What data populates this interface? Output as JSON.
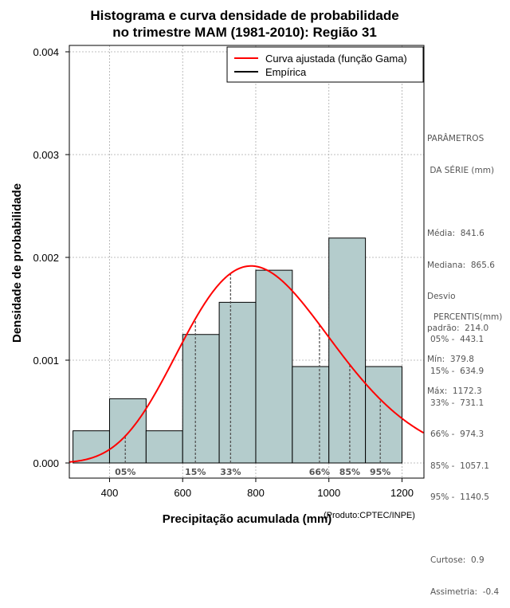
{
  "chart_data": {
    "type": "histogram",
    "title_line1": "Histograma e curva densidade de probabilidade",
    "title_line2": "no trimestre MAM (1981-2010): Região 31",
    "xlabel": "Precipitação acumulada (mm)",
    "ylabel": "Densidade de probabilidade",
    "credit": "(Produto:CPTEC/INPE)",
    "xlim": [
      290,
      1260
    ],
    "ylim": [
      0,
      0.0041
    ],
    "x_ticks": [
      400,
      600,
      800,
      1000,
      1200
    ],
    "x_tick_labels": [
      "400",
      "600",
      "800",
      "1000",
      "1200"
    ],
    "y_ticks": [
      0,
      0.001,
      0.002,
      0.003,
      0.004
    ],
    "y_tick_labels": [
      "0.000",
      "0.001",
      "0.002",
      "0.003",
      "0.004"
    ],
    "bins": [
      {
        "from": 300,
        "to": 400,
        "density": 0.000313
      },
      {
        "from": 400,
        "to": 500,
        "density": 0.000625
      },
      {
        "from": 500,
        "to": 600,
        "density": 0.000313
      },
      {
        "from": 600,
        "to": 700,
        "density": 0.00125
      },
      {
        "from": 700,
        "to": 800,
        "density": 0.001563
      },
      {
        "from": 800,
        "to": 900,
        "density": 0.001875
      },
      {
        "from": 900,
        "to": 1000,
        "density": 0.000938
      },
      {
        "from": 1000,
        "to": 1100,
        "density": 0.002188
      },
      {
        "from": 1100,
        "to": 1200,
        "density": 0.000938
      }
    ],
    "gamma_fit": {
      "mean": 841.6,
      "sd": 214.0
    },
    "percentile_markers": [
      {
        "label": "05%",
        "value": 443.1
      },
      {
        "label": "15%",
        "value": 634.9
      },
      {
        "label": "33%",
        "value": 731.1
      },
      {
        "label": "66%",
        "value": 974.3
      },
      {
        "label": "85%",
        "value": 1057.1
      },
      {
        "label": "95%",
        "value": 1140.5
      }
    ],
    "legend": [
      {
        "label": "Curva ajustada (função Gama)",
        "color": "#ff0000"
      },
      {
        "label": "Empírica",
        "color": "#000000"
      }
    ],
    "colors": {
      "bar_fill": "#b4cccc",
      "curve": "#ff0000",
      "grid": "#aaaaaa",
      "marker": "#555555"
    }
  },
  "side_panel": {
    "params_title_1": "PARÂMETROS",
    "params_title_2": " DA SÉRIE (mm)",
    "media": "Média:  841.6",
    "mediana": "Mediana:  865.6",
    "desvio_1": "Desvio",
    "desvio_2": "padrão:  214.0",
    "min": "Mín:  379.8",
    "max": "Máx:  1172.3",
    "percentis_title": "PERCENTIS(mm)",
    "p05": "05% -  443.1",
    "p15": "15% -  634.9",
    "p33": "33% -  731.1",
    "p66": "66% -  974.3",
    "p85": "85% -  1057.1",
    "p95": "95% -  1140.5",
    "curtose": "Curtose:  0.9",
    "assimetria": "Assimetria:  -0.4"
  }
}
